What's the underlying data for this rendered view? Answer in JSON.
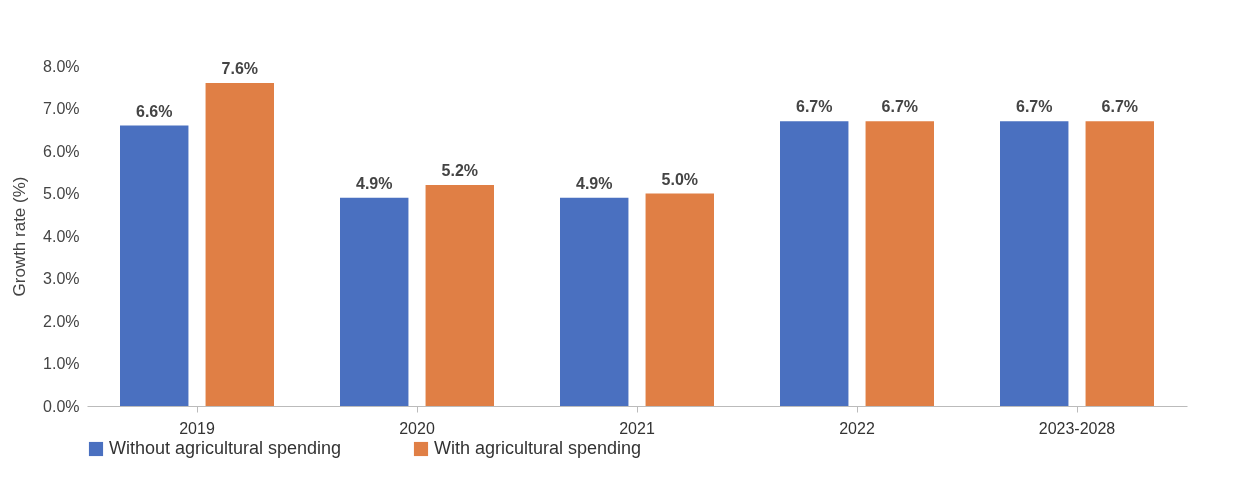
{
  "chart_data": {
    "type": "bar",
    "ylabel": "Growth rate (%)",
    "categories": [
      "2019",
      "2020",
      "2021",
      "2022",
      "2023-2028"
    ],
    "series": [
      {
        "name": "Without agricultural spending",
        "color": "#4a70c0",
        "values": [
          6.6,
          4.9,
          4.9,
          6.7,
          6.7
        ],
        "value_labels": [
          "6.6%",
          "4.9%",
          "4.9%",
          "6.7%",
          "6.7%"
        ]
      },
      {
        "name": "With agricultural spending",
        "color": "#e07f45",
        "values": [
          7.6,
          5.2,
          5.0,
          6.7,
          6.7
        ],
        "value_labels": [
          "7.6%",
          "5.2%",
          "5.0%",
          "6.7%",
          "6.7%"
        ]
      }
    ],
    "ylim": [
      0,
      8
    ],
    "yticks": [
      {
        "value": 0,
        "label": "0.0%"
      },
      {
        "value": 1,
        "label": "1.0%"
      },
      {
        "value": 2,
        "label": "2.0%"
      },
      {
        "value": 3,
        "label": "3.0%"
      },
      {
        "value": 4,
        "label": "4.0%"
      },
      {
        "value": 5,
        "label": "5.0%"
      },
      {
        "value": 6,
        "label": "6.0%"
      },
      {
        "value": 7,
        "label": "7.0%"
      },
      {
        "value": 8,
        "label": "8.0%"
      }
    ],
    "grid": false,
    "legend": "bottom"
  }
}
